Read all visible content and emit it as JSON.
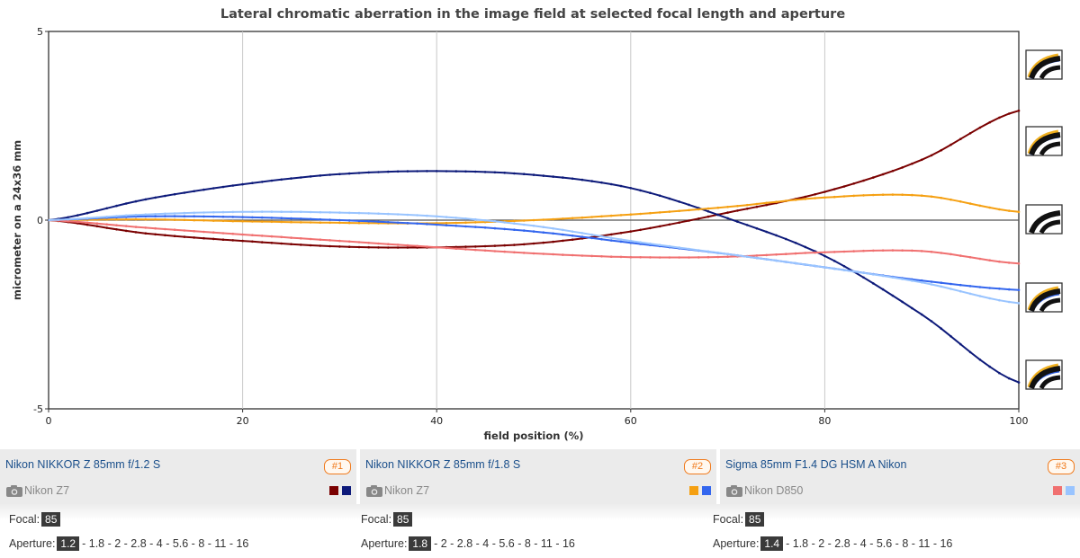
{
  "chart_data": {
    "type": "line",
    "title": "Lateral chromatic aberration in the image field at selected focal length and aperture",
    "xlabel": "field position (%)",
    "ylabel": "micrometer on a 24x36 mm",
    "xlim": [
      0,
      100
    ],
    "ylim": [
      -5,
      5
    ],
    "x_ticks": [
      0,
      20,
      40,
      60,
      80,
      100
    ],
    "y_ticks": [
      -5,
      0,
      5
    ],
    "grid": "vertical",
    "legend": "none",
    "series": [
      {
        "color": "#7a0000",
        "x": [
          0,
          10,
          20,
          30,
          40,
          50,
          60,
          70,
          80,
          90,
          100
        ],
        "y": [
          0,
          -0.35,
          -0.55,
          -0.7,
          -0.72,
          -0.62,
          -0.3,
          0.2,
          0.75,
          1.6,
          2.9
        ]
      },
      {
        "color": "#0d1a7a",
        "x": [
          0,
          10,
          20,
          30,
          40,
          50,
          60,
          70,
          80,
          90,
          100
        ],
        "y": [
          0,
          0.55,
          0.95,
          1.22,
          1.3,
          1.2,
          0.85,
          0.05,
          -0.95,
          -2.5,
          -4.3
        ]
      },
      {
        "color": "#f5a012",
        "x": [
          0,
          10,
          20,
          30,
          40,
          50,
          60,
          70,
          80,
          90,
          100
        ],
        "y": [
          0,
          0.02,
          -0.03,
          -0.07,
          -0.08,
          0.0,
          0.15,
          0.35,
          0.6,
          0.65,
          0.22
        ]
      },
      {
        "color": "#3366ee",
        "x": [
          0,
          10,
          20,
          30,
          40,
          50,
          60,
          70,
          80,
          90,
          100
        ],
        "y": [
          0,
          0.1,
          0.08,
          0.0,
          -0.12,
          -0.3,
          -0.6,
          -0.9,
          -1.25,
          -1.6,
          -1.85
        ]
      },
      {
        "color": "#f07070",
        "x": [
          0,
          10,
          20,
          30,
          40,
          50,
          60,
          70,
          80,
          90,
          100
        ],
        "y": [
          0,
          -0.2,
          -0.38,
          -0.55,
          -0.72,
          -0.88,
          -0.98,
          -0.97,
          -0.85,
          -0.82,
          -1.15
        ]
      },
      {
        "color": "#99c4ff",
        "x": [
          0,
          10,
          20,
          30,
          40,
          50,
          60,
          70,
          80,
          90,
          100
        ],
        "y": [
          0,
          0.15,
          0.22,
          0.2,
          0.1,
          -0.15,
          -0.55,
          -0.9,
          -1.25,
          -1.65,
          -2.2
        ]
      }
    ]
  },
  "icons": [
    "ca-sample-icon",
    "ca-sample-icon",
    "ca-sample-icon",
    "ca-sample-icon",
    "ca-sample-icon"
  ],
  "lenses": [
    {
      "name": "Nikon NIKKOR Z 85mm f/1.2 S",
      "badge": "#1",
      "camera": "Nikon Z7",
      "colors": [
        "#7a0000",
        "#0d1a7a"
      ],
      "focal_label": "Focal:",
      "focal": "85",
      "aperture_label": "Aperture:",
      "aperture_selected": "1.2",
      "aperture_rest": "- 1.8 - 2 - 2.8 - 4 - 5.6 - 8 - 11 - 16"
    },
    {
      "name": "Nikon NIKKOR Z 85mm f/1.8 S",
      "badge": "#2",
      "camera": "Nikon Z7",
      "colors": [
        "#f5a012",
        "#3366ee"
      ],
      "focal_label": "Focal:",
      "focal": "85",
      "aperture_label": "Aperture:",
      "aperture_selected": "1.8",
      "aperture_rest": "- 2 - 2.8 - 4 - 5.6 - 8 - 11 - 16"
    },
    {
      "name": "Sigma 85mm F1.4 DG HSM A Nikon",
      "badge": "#3",
      "camera": "Nikon D850",
      "colors": [
        "#f07070",
        "#99c4ff"
      ],
      "focal_label": "Focal:",
      "focal": "85",
      "aperture_label": "Aperture:",
      "aperture_selected": "1.4",
      "aperture_rest": "- 1.8 - 2 - 2.8 - 4 - 5.6 - 8 - 11 - 16"
    }
  ]
}
